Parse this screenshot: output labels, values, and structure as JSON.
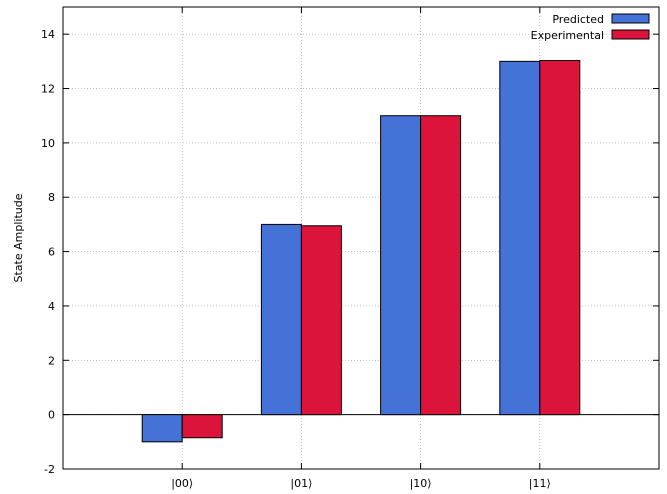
{
  "chart_data": {
    "type": "bar",
    "categories": [
      "|00⟩",
      "|01⟩",
      "|10⟩",
      "|11⟩"
    ],
    "series": [
      {
        "name": "Predicted",
        "values": [
          -1.0,
          7.0,
          11.0,
          13.0
        ],
        "color": "#4472d6"
      },
      {
        "name": "Experimental",
        "values": [
          -0.85,
          6.95,
          11.0,
          13.03
        ],
        "color": "#dc143c"
      }
    ],
    "xlabel": "",
    "ylabel": "State Amplitude",
    "ylim": [
      -2,
      15
    ],
    "yticks": [
      -2,
      0,
      2,
      4,
      6,
      8,
      10,
      12,
      14
    ],
    "grid": true,
    "legend_position": "top-right"
  }
}
